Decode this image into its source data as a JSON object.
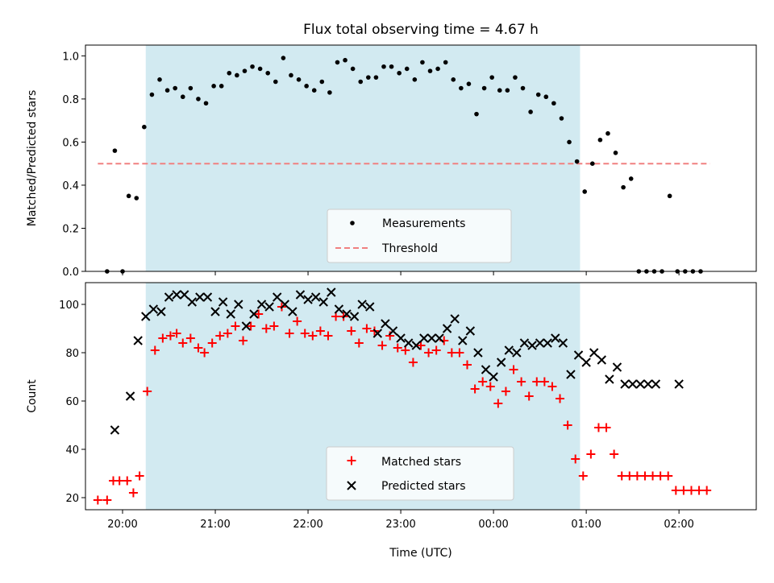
{
  "title": "Flux total observing time = 4.67 h",
  "xlabel": "Time (UTC)",
  "x_tick_labels": [
    "20:00",
    "21:00",
    "22:00",
    "23:00",
    "00:00",
    "01:00",
    "02:00"
  ],
  "colors": {
    "observing_window": "#add8e6",
    "measurements": "#000000",
    "threshold": "#f08080",
    "matched": "#ff0000",
    "predicted": "#000000"
  },
  "chart_data": [
    {
      "type": "scatter",
      "ylabel": "Matched/Predicted stars",
      "ylim": [
        0,
        1.05
      ],
      "xlim": [
        "19:36",
        "02:50"
      ],
      "y_ticks": [
        "0.0",
        "0.2",
        "0.4",
        "0.6",
        "0.8",
        "1.0"
      ],
      "observing_window": [
        "20:15",
        "00:56"
      ],
      "legend_placement": "lower-center",
      "series": [
        {
          "name": "Measurements",
          "style": "dots",
          "x": [
            "19:50",
            "19:55",
            "20:00",
            "20:04",
            "20:09",
            "20:14",
            "20:19",
            "20:24",
            "20:29",
            "20:34",
            "20:39",
            "20:44",
            "20:49",
            "20:54",
            "20:59",
            "21:04",
            "21:09",
            "21:14",
            "21:19",
            "21:24",
            "21:29",
            "21:34",
            "21:39",
            "21:44",
            "21:49",
            "21:54",
            "21:59",
            "22:04",
            "22:09",
            "22:14",
            "22:19",
            "22:24",
            "22:29",
            "22:34",
            "22:39",
            "22:44",
            "22:49",
            "22:54",
            "22:59",
            "23:04",
            "23:09",
            "23:14",
            "23:19",
            "23:24",
            "23:29",
            "23:34",
            "23:39",
            "23:44",
            "23:49",
            "23:54",
            "23:59",
            "00:04",
            "00:09",
            "00:14",
            "00:19",
            "00:24",
            "00:29",
            "00:34",
            "00:39",
            "00:44",
            "00:49",
            "00:54",
            "00:59",
            "01:04",
            "01:09",
            "01:14",
            "01:19",
            "01:24",
            "01:29",
            "01:34",
            "01:39",
            "01:44",
            "01:49",
            "01:54",
            "01:59",
            "02:04",
            "02:09",
            "02:14"
          ],
          "values": [
            0,
            0.56,
            0,
            0.35,
            0.34,
            0.67,
            0.82,
            0.89,
            0.84,
            0.85,
            0.81,
            0.85,
            0.8,
            0.78,
            0.86,
            0.86,
            0.92,
            0.91,
            0.93,
            0.95,
            0.94,
            0.92,
            0.88,
            0.99,
            0.91,
            0.89,
            0.86,
            0.84,
            0.88,
            0.83,
            0.97,
            0.98,
            0.94,
            0.88,
            0.9,
            0.9,
            0.95,
            0.95,
            0.92,
            0.94,
            0.89,
            0.97,
            0.93,
            0.94,
            0.97,
            0.89,
            0.85,
            0.87,
            0.73,
            0.85,
            0.9,
            0.84,
            0.84,
            0.9,
            0.85,
            0.74,
            0.82,
            0.81,
            0.78,
            0.71,
            0.6,
            0.51,
            0.37,
            0.5,
            0.61,
            0.64,
            0.55,
            0.39,
            0.43,
            0,
            0,
            0,
            0,
            0.35,
            0,
            0,
            0,
            0
          ]
        },
        {
          "name": "Threshold",
          "style": "dashed-line",
          "x": [
            "19:44",
            "02:20"
          ],
          "values": [
            0.5,
            0.5
          ]
        }
      ]
    },
    {
      "type": "scatter",
      "ylabel": "Count",
      "ylim": [
        15,
        109
      ],
      "xlim": [
        "19:36",
        "02:50"
      ],
      "y_ticks": [
        "20",
        "40",
        "60",
        "80",
        "100"
      ],
      "observing_window": [
        "20:15",
        "00:56"
      ],
      "legend_placement": "lower-center",
      "series": [
        {
          "name": "Matched stars",
          "marker": "plus",
          "x": [
            "19:44",
            "19:50",
            "19:54",
            "19:58",
            "20:03",
            "20:07",
            "20:11",
            "20:16",
            "20:21",
            "20:26",
            "20:31",
            "20:35",
            "20:39",
            "20:44",
            "20:49",
            "20:53",
            "20:58",
            "21:03",
            "21:08",
            "21:13",
            "21:18",
            "21:23",
            "21:28",
            "21:33",
            "21:38",
            "21:43",
            "21:48",
            "21:53",
            "21:58",
            "22:03",
            "22:08",
            "22:13",
            "22:18",
            "22:23",
            "22:28",
            "22:33",
            "22:38",
            "22:43",
            "22:48",
            "22:53",
            "22:58",
            "23:03",
            "23:08",
            "23:13",
            "23:18",
            "23:23",
            "23:28",
            "23:33",
            "23:38",
            "23:43",
            "23:48",
            "23:53",
            "23:58",
            "00:03",
            "00:08",
            "00:13",
            "00:18",
            "00:23",
            "00:28",
            "00:33",
            "00:38",
            "00:43",
            "00:48",
            "00:53",
            "00:58",
            "01:03",
            "01:08",
            "01:13",
            "01:18",
            "01:23",
            "01:28",
            "01:33",
            "01:38",
            "01:43",
            "01:48",
            "01:53",
            "01:58",
            "02:03",
            "02:08",
            "02:13",
            "02:18"
          ],
          "values": [
            19,
            19,
            27,
            27,
            27,
            22,
            29,
            64,
            81,
            86,
            87,
            88,
            84,
            86,
            82,
            80,
            84,
            87,
            88,
            91,
            85,
            91,
            96,
            90,
            91,
            99,
            88,
            93,
            88,
            87,
            89,
            87,
            95,
            95,
            89,
            84,
            90,
            89,
            83,
            87,
            82,
            81,
            76,
            83,
            80,
            81,
            85,
            80,
            80,
            75,
            65,
            68,
            66,
            59,
            64,
            73,
            68,
            62,
            68,
            68,
            66,
            61,
            50,
            36,
            29,
            38,
            49,
            49,
            38,
            29,
            29,
            29,
            29,
            29,
            29,
            29,
            23,
            23,
            23,
            23,
            23
          ]
        },
        {
          "name": "Predicted stars",
          "marker": "x",
          "x": [
            "19:55",
            "20:05",
            "20:10",
            "20:15",
            "20:20",
            "20:25",
            "20:30",
            "20:35",
            "20:40",
            "20:45",
            "20:50",
            "20:55",
            "21:00",
            "21:05",
            "21:10",
            "21:15",
            "21:20",
            "21:25",
            "21:30",
            "21:35",
            "21:40",
            "21:45",
            "21:50",
            "21:55",
            "22:00",
            "22:05",
            "22:10",
            "22:15",
            "22:20",
            "22:25",
            "22:30",
            "22:35",
            "22:40",
            "22:45",
            "22:50",
            "22:55",
            "23:00",
            "23:05",
            "23:10",
            "23:15",
            "23:20",
            "23:25",
            "23:30",
            "23:35",
            "23:40",
            "23:45",
            "23:50",
            "23:55",
            "00:00",
            "00:05",
            "00:10",
            "00:15",
            "00:20",
            "00:25",
            "00:30",
            "00:35",
            "00:40",
            "00:45",
            "00:50",
            "00:55",
            "01:00",
            "01:05",
            "01:10",
            "01:15",
            "01:20",
            "01:25",
            "01:30",
            "01:35",
            "01:40",
            "01:45",
            "02:00"
          ],
          "values": [
            48,
            62,
            85,
            95,
            98,
            97,
            103,
            104,
            104,
            101,
            103,
            103,
            97,
            101,
            96,
            100,
            91,
            96,
            100,
            99,
            103,
            100,
            97,
            104,
            102,
            103,
            101,
            105,
            98,
            96,
            95,
            100,
            99,
            88,
            92,
            89,
            86,
            84,
            83,
            86,
            86,
            86,
            90,
            94,
            85,
            89,
            80,
            73,
            70,
            76,
            81,
            80,
            84,
            83,
            84,
            84,
            86,
            84,
            71,
            79,
            76,
            80,
            77,
            69,
            74,
            67,
            67,
            67,
            67,
            67,
            67
          ]
        }
      ]
    }
  ]
}
